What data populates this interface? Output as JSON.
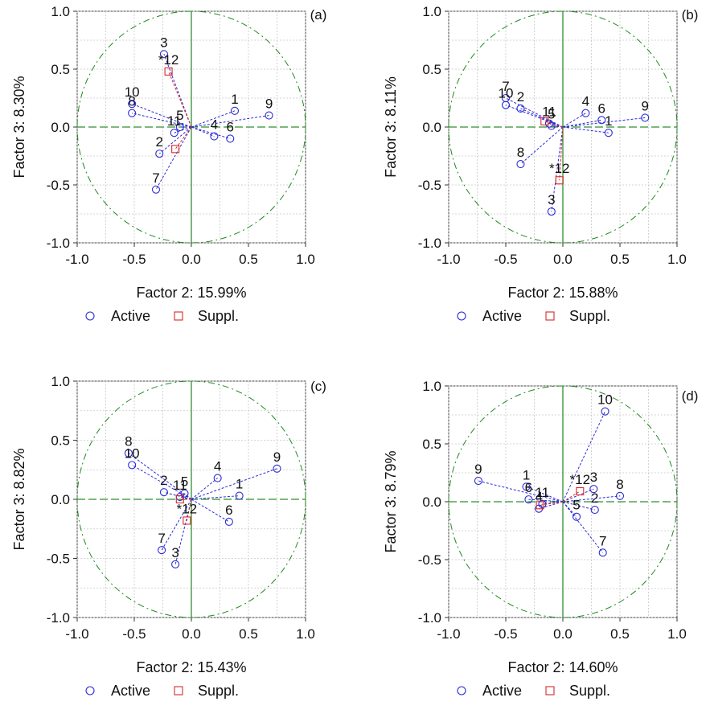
{
  "legend": {
    "active_label": "Active",
    "suppl_label": "Suppl."
  },
  "colors": {
    "active": "#2b2bd6",
    "suppl": "#d62b2b",
    "circle": "#1f8a1f",
    "grid": "#c8c8c8",
    "axis": "#2f8f2f",
    "text": "#111111"
  },
  "chart_data": [
    {
      "type": "scatter",
      "panel_label": "(a)",
      "xlabel": "Factor 2: 15.99%",
      "ylabel": "Factor 3:  8.30%",
      "xlim": [
        -1.0,
        1.0
      ],
      "ylim": [
        -1.0,
        1.0
      ],
      "xticks": [
        "-1.0",
        "-0.5",
        "0.0",
        "0.5",
        "1.0"
      ],
      "yticks": [
        "1.0",
        "0.5",
        "0.0",
        "-0.5",
        "-1.0"
      ],
      "grid": true,
      "legend_position": "bottom",
      "active": [
        {
          "label": "1",
          "x": 0.38,
          "y": 0.14
        },
        {
          "label": "2",
          "x": -0.28,
          "y": -0.23
        },
        {
          "label": "3",
          "x": -0.24,
          "y": 0.63
        },
        {
          "label": "4",
          "x": 0.2,
          "y": -0.08
        },
        {
          "label": "5",
          "x": -0.1,
          "y": 0.0
        },
        {
          "label": "6",
          "x": 0.34,
          "y": -0.1
        },
        {
          "label": "7",
          "x": -0.31,
          "y": -0.54
        },
        {
          "label": "8",
          "x": -0.52,
          "y": 0.12
        },
        {
          "label": "9",
          "x": 0.68,
          "y": 0.1
        },
        {
          "label": "10",
          "x": -0.52,
          "y": 0.2
        },
        {
          "label": "11",
          "x": -0.15,
          "y": -0.05
        }
      ],
      "suppl": [
        {
          "label": "*12",
          "x": -0.2,
          "y": 0.48
        },
        {
          "label": "",
          "x": -0.14,
          "y": -0.19
        }
      ]
    },
    {
      "type": "scatter",
      "panel_label": "(b)",
      "xlabel": "Factor 2: 15.88%",
      "ylabel": "Factor 3:  8.11%",
      "xlim": [
        -1.0,
        1.0
      ],
      "ylim": [
        -1.0,
        1.0
      ],
      "xticks": [
        "-1.0",
        "-0.5",
        "0.0",
        "0.5",
        "1.0"
      ],
      "yticks": [
        "1.0",
        "0.5",
        "0.0",
        "-0.5",
        "-1.0"
      ],
      "grid": true,
      "legend_position": "bottom",
      "active": [
        {
          "label": "1",
          "x": 0.4,
          "y": -0.05
        },
        {
          "label": "2",
          "x": -0.37,
          "y": 0.16
        },
        {
          "label": "3",
          "x": -0.1,
          "y": -0.73
        },
        {
          "label": "4",
          "x": 0.2,
          "y": 0.12
        },
        {
          "label": "5",
          "x": -0.1,
          "y": 0.01
        },
        {
          "label": "6",
          "x": 0.34,
          "y": 0.06
        },
        {
          "label": "7",
          "x": -0.5,
          "y": 0.25
        },
        {
          "label": "8",
          "x": -0.37,
          "y": -0.32
        },
        {
          "label": "9",
          "x": 0.72,
          "y": 0.08
        },
        {
          "label": "10",
          "x": -0.5,
          "y": 0.19
        },
        {
          "label": "11",
          "x": -0.12,
          "y": 0.03
        }
      ],
      "suppl": [
        {
          "label": "",
          "x": -0.16,
          "y": 0.05
        },
        {
          "label": "*12",
          "x": -0.03,
          "y": -0.46
        }
      ]
    },
    {
      "type": "scatter",
      "panel_label": "(c)",
      "xlabel": "Factor 2: 15.43%",
      "ylabel": "Factor 3:  8.82%",
      "xlim": [
        -1.0,
        1.0
      ],
      "ylim": [
        -1.0,
        1.0
      ],
      "xticks": [
        "-1.0",
        "-0.5",
        "0.0",
        "0.5",
        "1.0"
      ],
      "yticks": [
        "1.0",
        "0.5",
        "0.0",
        "-0.5",
        "-1.0"
      ],
      "grid": true,
      "legend_position": "bottom",
      "active": [
        {
          "label": "1",
          "x": 0.42,
          "y": 0.03
        },
        {
          "label": "2",
          "x": -0.24,
          "y": 0.06
        },
        {
          "label": "3",
          "x": -0.14,
          "y": -0.55
        },
        {
          "label": "4",
          "x": 0.23,
          "y": 0.18
        },
        {
          "label": "5",
          "x": -0.06,
          "y": 0.05
        },
        {
          "label": "6",
          "x": 0.33,
          "y": -0.19
        },
        {
          "label": "7",
          "x": -0.26,
          "y": -0.43
        },
        {
          "label": "8",
          "x": -0.55,
          "y": 0.39
        },
        {
          "label": "9",
          "x": 0.75,
          "y": 0.26
        },
        {
          "label": "10",
          "x": -0.52,
          "y": 0.29
        },
        {
          "label": "11",
          "x": -0.1,
          "y": 0.02
        }
      ],
      "suppl": [
        {
          "label": "*12",
          "x": -0.04,
          "y": -0.18
        },
        {
          "label": "",
          "x": -0.1,
          "y": 0.0
        }
      ]
    },
    {
      "type": "scatter",
      "panel_label": "(d)",
      "xlabel": "Factor 2: 14.60%",
      "ylabel": "Factor 3:  8.79%",
      "xlim": [
        -1.0,
        1.0
      ],
      "ylim": [
        -1.0,
        1.0
      ],
      "xticks": [
        "-1.0",
        "-0.5",
        "0.0",
        "0.5",
        "1.0"
      ],
      "yticks": [
        "1.0",
        "0.5",
        "0.0",
        "-0.5",
        "-1.0"
      ],
      "grid": true,
      "legend_position": "bottom",
      "active": [
        {
          "label": "1",
          "x": -0.32,
          "y": 0.13
        },
        {
          "label": "2",
          "x": 0.28,
          "y": -0.07
        },
        {
          "label": "3",
          "x": 0.27,
          "y": 0.11
        },
        {
          "label": "4",
          "x": -0.21,
          "y": -0.06
        },
        {
          "label": "5",
          "x": 0.12,
          "y": -0.13
        },
        {
          "label": "6",
          "x": -0.3,
          "y": 0.02
        },
        {
          "label": "7",
          "x": 0.35,
          "y": -0.44
        },
        {
          "label": "8",
          "x": 0.5,
          "y": 0.05
        },
        {
          "label": "9",
          "x": -0.74,
          "y": 0.18
        },
        {
          "label": "10",
          "x": 0.37,
          "y": 0.78
        },
        {
          "label": "11",
          "x": -0.18,
          "y": -0.02
        }
      ],
      "suppl": [
        {
          "label": "*12",
          "x": 0.15,
          "y": 0.09
        },
        {
          "label": "",
          "x": -0.2,
          "y": -0.03
        }
      ]
    }
  ]
}
